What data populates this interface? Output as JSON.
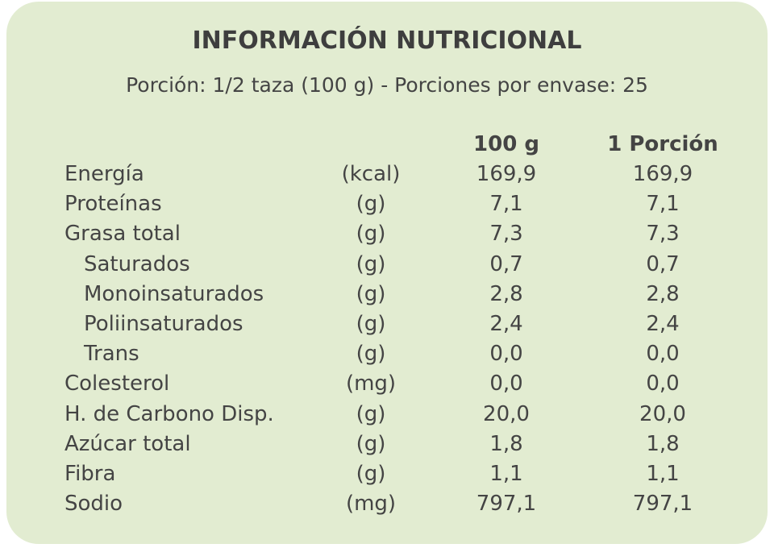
{
  "header": {
    "title": "INFORMACIÓN NUTRICIONAL",
    "subtitle": "Porción: 1/2 taza (100 g) - Porciones por envase: 25"
  },
  "table": {
    "columns": [
      "100 g",
      "1 Porción"
    ],
    "rows": [
      [
        "Energía",
        "(kcal)",
        "169,9",
        "169,9"
      ],
      [
        "Proteínas",
        "(g)",
        "7,1",
        "7,1"
      ],
      [
        "Grasa total",
        "(g)",
        "7,3",
        "7,3"
      ],
      [
        "Saturados",
        "(g)",
        "0,7",
        "0,7"
      ],
      [
        "Monoinsaturados",
        "(g)",
        "2,8",
        "2,8"
      ],
      [
        "Poliinsaturados",
        "(g)",
        "2,4",
        "2,4"
      ],
      [
        "Trans",
        "(g)",
        "0,0",
        "0,0"
      ],
      [
        "Colesterol",
        "(mg)",
        "0,0",
        "0,0"
      ],
      [
        "H. de Carbono Disp.",
        "(g)",
        "20,0",
        "20,0"
      ],
      [
        "Azúcar total",
        "(g)",
        "1,8",
        "1,8"
      ],
      [
        "Fibra",
        "(g)",
        "1,1",
        "1,1"
      ],
      [
        "Sodio",
        "(mg)",
        "797,1",
        "797,1"
      ]
    ]
  }
}
